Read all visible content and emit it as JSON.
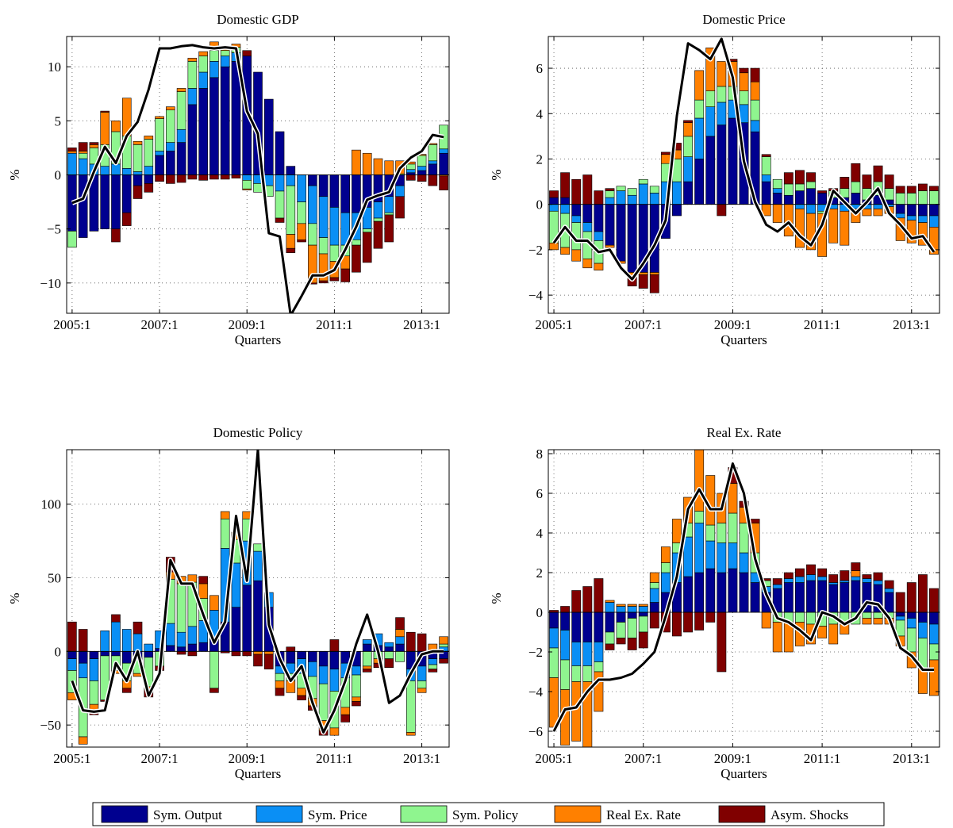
{
  "legend": {
    "entries": [
      {
        "label": "Sym. Output",
        "color": "#00008f"
      },
      {
        "label": "Sym. Price",
        "color": "#0a8ff5"
      },
      {
        "label": "Sym. Policy",
        "color": "#8ff58f"
      },
      {
        "label": "Real Ex. Rate",
        "color": "#ff8000"
      },
      {
        "label": "Asym. Shocks",
        "color": "#800000"
      }
    ]
  },
  "line_color": "#000000",
  "chart_data": [
    {
      "type": "bar",
      "stacked": true,
      "title": "Domestic GDP",
      "xlabel": "Quarters",
      "ylabel": "%",
      "x_start": "2005:1",
      "n_quarters": 35,
      "xticks": [
        "2005:1",
        "2007:1",
        "2009:1",
        "2011:1",
        "2013:1"
      ],
      "ylim": [
        -12.8,
        12.8
      ],
      "yticks": [
        -10,
        -5,
        0,
        5,
        10
      ],
      "grid": true,
      "series": [
        {
          "name": "Sym. Output",
          "values": [
            -5.2,
            -5.8,
            -5.2,
            -5.0,
            -5.0,
            -3.5,
            -1.0,
            -0.8,
            1.8,
            2.2,
            3.0,
            6.5,
            8.0,
            9.0,
            10.0,
            10.5,
            11.0,
            9.5,
            7.0,
            4.0,
            0.8,
            0,
            -1.0,
            -2.0,
            -3.0,
            -3.5,
            -3.5,
            -3.0,
            -2.5,
            -2.0,
            -1.0,
            0.2,
            0.4,
            1.0,
            2.0
          ]
        },
        {
          "name": "Sym. Price",
          "values": [
            2.0,
            1.5,
            1.0,
            0.8,
            1.0,
            0.6,
            0.3,
            0.8,
            0.4,
            0.8,
            1.2,
            1.5,
            1.5,
            1.5,
            1.0,
            0.8,
            -0.5,
            -0.8,
            -1.0,
            -1.5,
            -1.0,
            -2.5,
            -3.5,
            -3.8,
            -3.5,
            -3.0,
            -2.5,
            -2.0,
            -1.5,
            -1.5,
            -1.0,
            0.3,
            0.4,
            0.3,
            0.4
          ]
        },
        {
          "name": "Sym. Policy",
          "values": [
            -1.5,
            0.5,
            1.5,
            2.0,
            3.0,
            3.0,
            2.5,
            2.5,
            3.0,
            3.0,
            3.5,
            2.5,
            1.5,
            1.0,
            0.5,
            0.5,
            -0.8,
            -0.8,
            -1.0,
            -2.5,
            -4.5,
            -2.0,
            -2.0,
            -1.5,
            -1.5,
            -1.0,
            -0.5,
            -0.3,
            -0.3,
            -0.2,
            0.1,
            0.5,
            1.0,
            1.5,
            2.2
          ]
        },
        {
          "name": "Real Ex. Rate",
          "values": [
            0.2,
            0.2,
            0.3,
            3.0,
            1.0,
            3.5,
            0.3,
            0.3,
            0.2,
            0.3,
            0.3,
            0.3,
            0.4,
            0.8,
            0.3,
            0.3,
            -0.1,
            0,
            0,
            0,
            -1.3,
            -1.5,
            -3.5,
            -2.5,
            -1.5,
            -1.2,
            2.3,
            2.0,
            1.5,
            1.3,
            1.2,
            0.2,
            0.1,
            0.1,
            -0.1
          ]
        },
        {
          "name": "Asym. Shocks",
          "values": [
            0.3,
            0.8,
            0.2,
            0.1,
            -1.2,
            -1.2,
            -1.2,
            -0.8,
            -0.6,
            -0.8,
            -0.7,
            -0.4,
            -0.5,
            -0.4,
            -0.4,
            -0.3,
            0.5,
            0,
            0,
            -0.4,
            -0.4,
            -0.2,
            -0.1,
            -0.2,
            -0.3,
            -1.2,
            -2.5,
            -2.8,
            -2.5,
            -2.5,
            -2.0,
            -0.5,
            -0.6,
            -1.0,
            -1.3
          ]
        }
      ],
      "line": [
        -2.6,
        -2.2,
        0.3,
        2.6,
        1.1,
        3.6,
        4.9,
        7.9,
        11.7,
        11.7,
        11.9,
        12.0,
        11.8,
        11.7,
        11.8,
        11.7,
        5.9,
        3.8,
        -5.4,
        -5.7,
        -13.0,
        -11.2,
        -9.3,
        -9.3,
        -8.8,
        -6.9,
        -4.8,
        -2.3,
        -1.9,
        -1.6,
        0.6,
        1.6,
        2.2,
        3.7,
        3.5
      ]
    },
    {
      "type": "bar",
      "stacked": true,
      "title": "Domestic Price",
      "xlabel": "Quarters",
      "ylabel": "%",
      "x_start": "2005:1",
      "n_quarters": 35,
      "xticks": [
        "2005:1",
        "2007:1",
        "2009:1",
        "2011:1",
        "2013:1"
      ],
      "ylim": [
        -4.8,
        7.4
      ],
      "yticks": [
        -4,
        -2,
        0,
        2,
        4,
        6
      ],
      "grid": true,
      "series": [
        {
          "name": "Sym. Output",
          "values": [
            0.3,
            0.3,
            -0.5,
            -0.8,
            -1.2,
            -1.8,
            -2.5,
            -3.0,
            -3.0,
            -3.0,
            -1.5,
            -0.5,
            1.0,
            2.0,
            3.0,
            3.5,
            3.8,
            3.6,
            3.2,
            1.0,
            0.5,
            0.4,
            0.6,
            0.7,
            0.5,
            0.3,
            0.3,
            0.5,
            0.2,
            0.4,
            0.2,
            -0.4,
            -0.5,
            -0.5,
            -0.5
          ]
        },
        {
          "name": "Sym. Price",
          "values": [
            -0.3,
            -0.4,
            -0.3,
            -0.4,
            -0.4,
            0.3,
            0.6,
            0.4,
            0.9,
            0.5,
            1.0,
            1.0,
            1.1,
            1.8,
            1.3,
            1.0,
            0.8,
            0.8,
            0.5,
            0.3,
            0.2,
            0,
            -0.2,
            -0.4,
            -0.3,
            -0.2,
            -0.3,
            -0.2,
            -0.2,
            -0.2,
            -0.1,
            -0.2,
            -0.2,
            -0.3,
            -0.5
          ]
        },
        {
          "name": "Sym. Policy",
          "values": [
            -1.4,
            -1.5,
            -1.2,
            -1.2,
            -1.0,
            0.3,
            0.2,
            0.3,
            0.2,
            0.3,
            0.8,
            1.0,
            0.9,
            0.8,
            0.7,
            0.7,
            0.6,
            0.6,
            0.9,
            0.8,
            0.4,
            0.5,
            0.3,
            0.3,
            -0.1,
            0.3,
            0.4,
            0.5,
            0.5,
            0.6,
            0.5,
            0.5,
            0.5,
            0.6,
            0.6
          ]
        },
        {
          "name": "Real Ex. Rate",
          "values": [
            -0.3,
            -0.3,
            -0.5,
            -0.4,
            -0.3,
            -0.1,
            -0.1,
            -0.2,
            -0.1,
            -0.1,
            0.4,
            0.4,
            0.6,
            1.3,
            1.9,
            1.1,
            1.1,
            0.8,
            0.8,
            -0.5,
            -0.8,
            -1.4,
            -1.7,
            -1.6,
            -1.9,
            -1.5,
            -1.5,
            -0.6,
            -0.3,
            -0.3,
            -0.3,
            -1.0,
            -1.0,
            -1.0,
            -1.2
          ]
        },
        {
          "name": "Asym. Shocks",
          "values": [
            0.3,
            1.1,
            1.1,
            1.3,
            0.6,
            0.1,
            0.0,
            -0.4,
            -0.6,
            -0.8,
            0.1,
            0.3,
            0.1,
            0.0,
            0.0,
            -0.5,
            0.1,
            0.2,
            0.6,
            0.1,
            0.0,
            0.5,
            0.6,
            0.4,
            0.1,
            0.1,
            0.5,
            0.8,
            0.6,
            0.7,
            0.6,
            0.3,
            0.3,
            0.3,
            0.2
          ]
        }
      ],
      "line": [
        -1.7,
        -1.0,
        -1.6,
        -1.6,
        -2.1,
        -2.0,
        -2.8,
        -3.3,
        -2.6,
        -1.8,
        -0.7,
        3.9,
        7.1,
        6.8,
        6.4,
        7.3,
        5.6,
        1.9,
        0.1,
        -0.9,
        -1.2,
        -0.8,
        -1.4,
        -1.8,
        -0.9,
        0.6,
        0.1,
        -0.4,
        0.1,
        0.7,
        -0.4,
        -0.9,
        -1.5,
        -1.4,
        -2.1
      ]
    },
    {
      "type": "bar",
      "stacked": true,
      "title": "Domestic Policy",
      "xlabel": "Quarters",
      "ylabel": "%",
      "x_start": "2005:1",
      "n_quarters": 35,
      "xticks": [
        "2005:1",
        "2007:1",
        "2009:1",
        "2011:1",
        "2013:1"
      ],
      "ylim": [
        -65,
        137
      ],
      "yticks": [
        -50,
        0,
        50,
        100
      ],
      "grid": true,
      "series": [
        {
          "name": "Sym. Output",
          "values": [
            -5,
            -8,
            -5,
            -3,
            -3,
            -8,
            -5,
            -4,
            2,
            4,
            3,
            5,
            6,
            8,
            20,
            30,
            45,
            48,
            30,
            -10,
            -8,
            -5,
            -7,
            -10,
            -12,
            -8,
            -10,
            5,
            4,
            3,
            5,
            -12,
            -10,
            -5,
            -5
          ]
        },
        {
          "name": "Sym. Price",
          "values": [
            -8,
            -10,
            -15,
            14,
            20,
            15,
            12,
            5,
            12,
            15,
            10,
            12,
            15,
            20,
            50,
            30,
            30,
            20,
            10,
            -5,
            -7,
            -10,
            -10,
            -12,
            -15,
            -10,
            -6,
            3,
            8,
            3,
            5,
            -8,
            -10,
            -4,
            3
          ]
        },
        {
          "name": "Sym. Policy",
          "values": [
            -15,
            -40,
            -16,
            -30,
            -10,
            -12,
            -10,
            -20,
            -10,
            30,
            33,
            30,
            15,
            -25,
            20,
            16,
            15,
            5,
            0,
            -5,
            -5,
            -10,
            -15,
            -25,
            -25,
            -20,
            -15,
            -10,
            -5,
            -5,
            -7,
            -35,
            -5,
            -3,
            2
          ]
        },
        {
          "name": "Real Ex. Rate",
          "values": [
            -5,
            -5,
            -5,
            0,
            -2,
            -5,
            -2,
            -2,
            0,
            5,
            5,
            5,
            10,
            10,
            5,
            5,
            5,
            -2,
            -2,
            -5,
            -8,
            -5,
            -5,
            -7,
            -5,
            -5,
            -3,
            -2,
            -3,
            0,
            5,
            -2,
            -3,
            5,
            5
          ]
        },
        {
          "name": "Asym. Shocks",
          "values": [
            20,
            15,
            -2,
            -1,
            5,
            -3,
            8,
            -5,
            -3,
            10,
            -2,
            -3,
            5,
            -3,
            -1,
            -3,
            -3,
            -8,
            -10,
            -5,
            3,
            -3,
            -3,
            -3,
            8,
            -5,
            -3,
            -2,
            -3,
            -6,
            8,
            13,
            12,
            -2,
            -3
          ]
        }
      ],
      "line": [
        -20,
        -40,
        -41,
        -40,
        -8,
        -20,
        0,
        -30,
        -15,
        62,
        46,
        46,
        25,
        6,
        20,
        92,
        48,
        137,
        18,
        -5,
        -20,
        -10,
        -35,
        -55,
        -40,
        -20,
        5,
        25,
        0,
        -35,
        -30,
        -15,
        -2,
        0,
        0
      ]
    },
    {
      "type": "bar",
      "stacked": true,
      "title": "Real Ex. Rate",
      "xlabel": "Quarters",
      "ylabel": "%",
      "x_start": "2005:1",
      "n_quarters": 35,
      "xticks": [
        "2005:1",
        "2007:1",
        "2009:1",
        "2011:1",
        "2013:1"
      ],
      "ylim": [
        -6.8,
        8.2
      ],
      "yticks": [
        -6,
        -4,
        -2,
        0,
        2,
        4,
        6,
        8
      ],
      "grid": true,
      "series": [
        {
          "name": "Sym. Output",
          "values": [
            -0.8,
            -0.9,
            -1.5,
            -1.5,
            -1.5,
            -1.0,
            -0.5,
            -0.3,
            -0.2,
            0.5,
            1.0,
            1.5,
            1.8,
            2.0,
            2.2,
            2.0,
            2.2,
            2.0,
            1.5,
            1.0,
            1.2,
            1.5,
            1.5,
            1.6,
            1.6,
            1.4,
            1.5,
            1.6,
            1.5,
            1.4,
            1.0,
            -0.2,
            -0.3,
            -0.5,
            -0.6
          ]
        },
        {
          "name": "Sym. Price",
          "values": [
            -1.0,
            -1.5,
            -1.2,
            -1.2,
            -1.0,
            0.5,
            0.3,
            0.3,
            0.3,
            0.7,
            1.0,
            1.5,
            2.0,
            2.5,
            1.4,
            1.5,
            1.3,
            1.0,
            0.5,
            0.3,
            0.2,
            0.2,
            0.3,
            0.3,
            0.2,
            0.1,
            0.1,
            0.2,
            0.2,
            0.2,
            0.2,
            -0.2,
            -0.5,
            -0.8,
            -1.0
          ]
        },
        {
          "name": "Sym. Policy",
          "values": [
            -1.5,
            -1.5,
            -0.8,
            -0.8,
            -0.5,
            -0.6,
            -0.8,
            -1.0,
            -0.8,
            0.3,
            0.5,
            0.5,
            0.7,
            0.6,
            0.8,
            1.0,
            1.5,
            1.5,
            1.0,
            0.3,
            -0.5,
            -0.5,
            -0.5,
            -0.6,
            -0.7,
            -0.6,
            -0.6,
            -0.6,
            -0.3,
            -0.3,
            -0.3,
            -0.8,
            -1.2,
            -1.5,
            -0.8
          ]
        },
        {
          "name": "Real Ex. Rate",
          "values": [
            -2.5,
            -2.8,
            -3.0,
            -3.5,
            -2.0,
            0.1,
            0.1,
            0.1,
            0.1,
            0.5,
            0.8,
            1.2,
            1.3,
            3.2,
            2.5,
            1.5,
            1.5,
            0.8,
            1.5,
            -0.8,
            -1.5,
            -1.5,
            -1.2,
            -1.0,
            -0.6,
            -1.0,
            -0.5,
            0.3,
            -0.3,
            -0.3,
            -0.3,
            -0.5,
            -0.8,
            -1.3,
            -1.8
          ]
        },
        {
          "name": "Asym. Shocks",
          "values": [
            0.1,
            0.3,
            1.1,
            1.3,
            1.7,
            -0.3,
            -0.3,
            -0.6,
            -0.8,
            -0.8,
            -1.0,
            -1.2,
            -1.0,
            -0.9,
            -0.5,
            -3.0,
            0.8,
            0.3,
            0.2,
            0.1,
            0.3,
            0.3,
            0.4,
            0.5,
            0.4,
            0.4,
            0.5,
            0.4,
            0.2,
            0.4,
            0.4,
            1.0,
            1.5,
            1.9,
            1.2
          ]
        }
      ],
      "line": [
        -6.0,
        -4.9,
        -4.8,
        -4.0,
        -3.4,
        -3.4,
        -3.3,
        -3.1,
        -2.6,
        -2.0,
        -0.2,
        1.8,
        5.2,
        6.2,
        5.2,
        5.2,
        7.5,
        6.0,
        2.7,
        0.9,
        -0.3,
        -0.5,
        -0.9,
        -1.4,
        0.0,
        -0.2,
        -0.6,
        -0.3,
        0.5,
        0.4,
        -0.3,
        -1.8,
        -2.2,
        -2.9,
        -2.9
      ]
    }
  ]
}
